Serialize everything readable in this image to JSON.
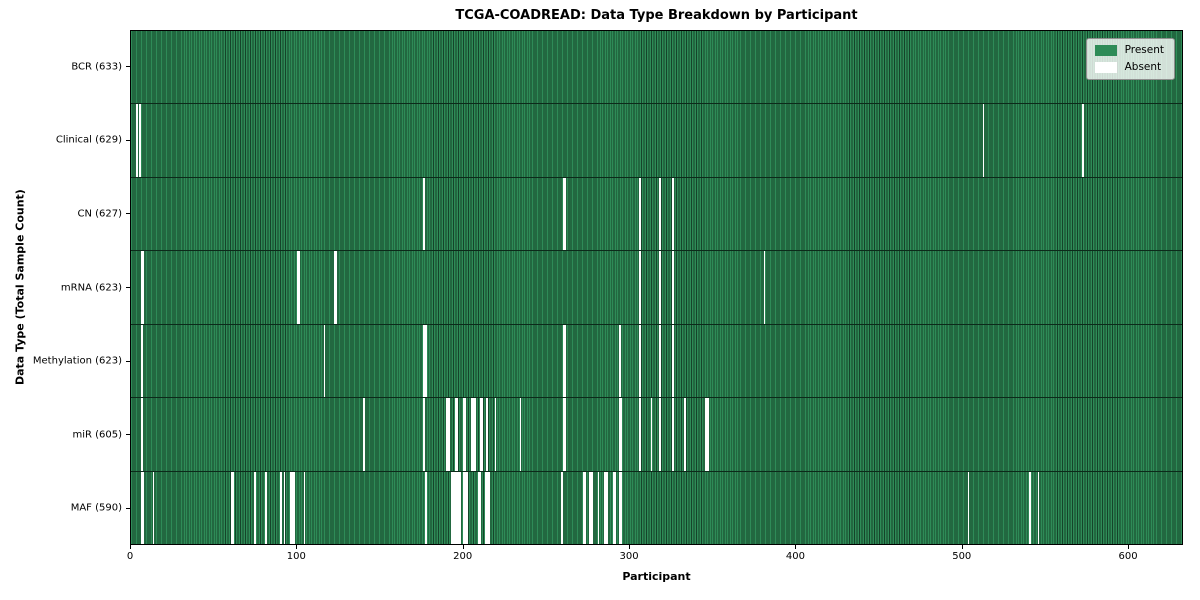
{
  "chart_data": {
    "type": "heatmap",
    "title": "TCGA-COADREAD: Data Type Breakdown by Participant",
    "xlabel": "Participant",
    "ylabel": "Data Type (Total Sample Count)",
    "x_ticks": [
      0,
      100,
      200,
      300,
      400,
      500,
      600
    ],
    "x_max": 633,
    "total_participants": 633,
    "grid": false,
    "legend_position": "upper right",
    "legend_labels": {
      "present": "Present",
      "absent": "Absent"
    },
    "colors": {
      "present": "#2e8b57",
      "present_dark_edge": "#15442a",
      "absent": "#ffffff",
      "row_separator": "#0c2a1a",
      "legend_background": "rgba(255,255,255,0.8)"
    },
    "rows": [
      {
        "data_type": "BCR",
        "label": "BCR (633)",
        "present_count": 633,
        "absent_count": 0,
        "absent_participants": []
      },
      {
        "data_type": "Clinical",
        "label": "Clinical (629)",
        "present_count": 629,
        "absent_count": 4,
        "absent_participants": [
          3,
          5,
          513,
          573
        ]
      },
      {
        "data_type": "CN",
        "label": "CN (627)",
        "present_count": 627,
        "absent_count": 6,
        "absent_participants": [
          176,
          260,
          261,
          306,
          318,
          326
        ]
      },
      {
        "data_type": "mRNA",
        "label": "mRNA (623)",
        "present_count": 623,
        "absent_count": 10,
        "absent_participants": [
          6,
          7,
          100,
          101,
          122,
          123,
          306,
          318,
          326,
          381
        ]
      },
      {
        "data_type": "Methylation",
        "label": "Methylation (623)",
        "present_count": 623,
        "absent_count": 10,
        "absent_participants": [
          6,
          116,
          176,
          177,
          260,
          261,
          294,
          306,
          318,
          326
        ]
      },
      {
        "data_type": "miR",
        "label": "miR (605)",
        "present_count": 605,
        "absent_count": 28,
        "absent_participants": [
          6,
          140,
          176,
          190,
          191,
          195,
          196,
          200,
          201,
          205,
          206,
          207,
          210,
          211,
          214,
          219,
          234,
          260,
          261,
          294,
          295,
          306,
          313,
          318,
          326,
          333,
          346,
          347
        ]
      },
      {
        "data_type": "MAF",
        "label": "MAF (590)",
        "present_count": 590,
        "absent_count": 43,
        "absent_participants": [
          6,
          7,
          13,
          60,
          61,
          74,
          81,
          90,
          92,
          96,
          97,
          98,
          104,
          177,
          193,
          194,
          195,
          196,
          197,
          198,
          200,
          201,
          202,
          209,
          210,
          213,
          214,
          215,
          259,
          272,
          273,
          276,
          277,
          281,
          285,
          286,
          290,
          291,
          294,
          295,
          504,
          541,
          546
        ]
      }
    ]
  }
}
